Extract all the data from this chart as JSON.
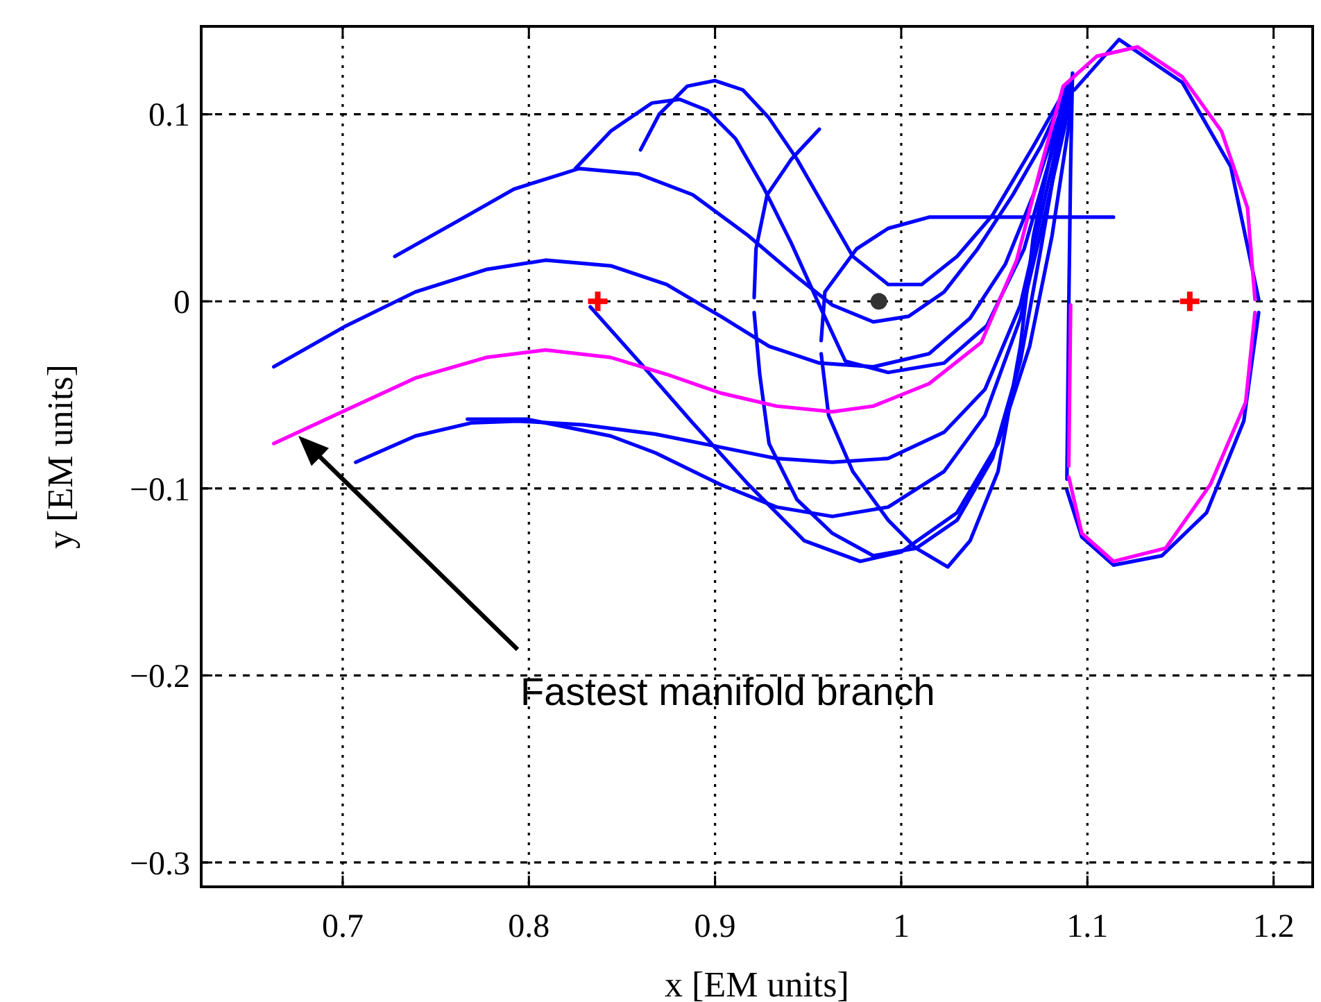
{
  "chart_data": {
    "type": "line",
    "xlabel": "x [EM units]",
    "ylabel": "y [EM units]",
    "xlim": [
      0.624,
      1.221
    ],
    "ylim": [
      -0.313,
      0.147
    ],
    "xticks": [
      0.7,
      0.8,
      0.9,
      1,
      1.1,
      1.2
    ],
    "yticks": [
      {
        "value": -0.3,
        "label": "−0.3"
      },
      {
        "value": -0.2,
        "label": "−0.2"
      },
      {
        "value": -0.1,
        "label": "−0.1"
      },
      0,
      0.1
    ],
    "grid": true,
    "marker": "none",
    "line_style": "solid",
    "annotations": [
      "Fastest manifold branch"
    ],
    "series": [
      {
        "color": "#0000ff",
        "x": [
          1.093,
          1.117,
          1.151,
          1.177,
          1.192
        ],
        "values": [
          0.113,
          0.14,
          0.117,
          0.072,
          0.001
        ]
      },
      {
        "color": "#0000ff",
        "x": [
          1.192,
          1.184,
          1.164,
          1.14,
          1.114,
          1.097,
          1.089
        ],
        "values": [
          -0.006,
          -0.064,
          -0.113,
          -0.136,
          -0.141,
          -0.126,
          -0.101
        ]
      },
      {
        "color": "#0000ff",
        "x": [
          1.089,
          1.09,
          1.091,
          1.092
        ],
        "values": [
          -0.095,
          -0.002,
          0.072,
          0.122
        ]
      },
      {
        "color": "#0000ff",
        "x": [
          0.728,
          0.762,
          0.792,
          0.827,
          0.859,
          0.888,
          0.918,
          0.944,
          0.963,
          0.985,
          1.004,
          1.023,
          1.041,
          1.06,
          1.075,
          1.092
        ],
        "values": [
          0.024,
          0.043,
          0.06,
          0.071,
          0.068,
          0.057,
          0.035,
          0.013,
          -0.002,
          -0.011,
          -0.008,
          0.005,
          0.028,
          0.057,
          0.083,
          0.12
        ]
      },
      {
        "color": "#0000ff",
        "x": [
          0.663,
          0.702,
          0.739,
          0.777,
          0.809,
          0.844,
          0.874,
          0.903,
          0.929,
          0.956,
          0.985,
          1.015,
          1.037,
          1.056,
          1.071,
          1.082,
          1.092
        ],
        "values": [
          -0.035,
          -0.013,
          0.005,
          0.017,
          0.022,
          0.019,
          0.009,
          -0.008,
          -0.024,
          -0.033,
          -0.035,
          -0.028,
          -0.009,
          0.02,
          0.057,
          0.091,
          0.12
        ]
      },
      {
        "color": "#0000ff",
        "x": [
          0.707,
          0.739,
          0.769,
          0.794,
          0.829,
          0.868,
          0.903,
          0.933,
          0.963,
          0.993,
          1.023,
          1.045,
          1.064,
          1.076,
          1.086,
          1.092
        ],
        "values": [
          -0.086,
          -0.072,
          -0.065,
          -0.064,
          -0.066,
          -0.071,
          -0.078,
          -0.084,
          -0.086,
          -0.084,
          -0.07,
          -0.047,
          -0.002,
          0.05,
          0.094,
          0.12
        ]
      },
      {
        "color": "#0000ff",
        "x": [
          0.767,
          0.799,
          0.819,
          0.844,
          0.868,
          0.903,
          0.933,
          0.963,
          0.993,
          1.023,
          1.045,
          1.064,
          1.078,
          1.088,
          1.092
        ],
        "values": [
          -0.063,
          -0.063,
          -0.067,
          -0.072,
          -0.081,
          -0.098,
          -0.11,
          -0.115,
          -0.11,
          -0.091,
          -0.061,
          -0.009,
          0.05,
          0.094,
          0.12
        ]
      },
      {
        "color": "#0000ff",
        "x": [
          0.833,
          0.859,
          0.888,
          0.918,
          0.948,
          0.978,
          1.0,
          1.03,
          1.052,
          1.069,
          1.081,
          1.09,
          1.092
        ],
        "values": [
          -0.003,
          -0.032,
          -0.065,
          -0.098,
          -0.128,
          -0.139,
          -0.134,
          -0.113,
          -0.076,
          -0.024,
          0.035,
          0.094,
          0.12
        ]
      },
      {
        "color": "#0000ff",
        "x": [
          0.825,
          0.844,
          0.866,
          0.881,
          0.896,
          0.911,
          0.926,
          0.941,
          0.956,
          0.97,
          0.993,
          1.023,
          1.046,
          1.066,
          1.081,
          1.092
        ],
        "values": [
          0.071,
          0.091,
          0.106,
          0.108,
          0.102,
          0.087,
          0.061,
          0.031,
          -0.002,
          -0.032,
          -0.038,
          -0.033,
          -0.013,
          0.028,
          0.08,
          0.12
        ]
      },
      {
        "color": "#0000ff",
        "x": [
          0.86,
          0.87,
          0.885,
          0.9,
          0.915,
          0.929,
          0.944,
          0.959,
          0.974,
          0.993,
          1.011,
          1.03,
          1.049,
          1.071,
          1.092
        ],
        "values": [
          0.081,
          0.1,
          0.115,
          0.118,
          0.113,
          0.098,
          0.076,
          0.05,
          0.024,
          0.009,
          0.009,
          0.024,
          0.046,
          0.083,
          0.12
        ]
      },
      {
        "color": "#0000ff",
        "x": [
          1.114,
          1.075,
          1.037,
          1.015,
          0.993,
          0.976,
          0.959,
          0.957
        ],
        "values": [
          0.045,
          0.045,
          0.045,
          0.045,
          0.039,
          0.028,
          0.005,
          -0.021
        ]
      },
      {
        "color": "#0000ff",
        "x": [
          0.957,
          0.961,
          0.974,
          0.993,
          1.008,
          1.025,
          1.037,
          1.052,
          1.064,
          1.071,
          1.082,
          1.092
        ],
        "values": [
          -0.028,
          -0.061,
          -0.091,
          -0.117,
          -0.132,
          -0.142,
          -0.128,
          -0.091,
          -0.024,
          0.035,
          0.087,
          0.12
        ]
      },
      {
        "color": "#0000ff",
        "x": [
          0.956,
          0.941,
          0.928,
          0.922,
          0.921
        ],
        "values": [
          0.092,
          0.076,
          0.057,
          0.028,
          0.002
        ]
      },
      {
        "color": "#0000ff",
        "x": [
          0.921,
          0.924,
          0.929,
          0.944,
          0.963,
          0.985,
          1.008,
          1.03,
          1.049,
          1.064,
          1.075,
          1.084,
          1.092
        ],
        "values": [
          -0.006,
          -0.039,
          -0.076,
          -0.106,
          -0.124,
          -0.136,
          -0.132,
          -0.117,
          -0.084,
          -0.032,
          0.028,
          0.08,
          0.12
        ]
      },
      {
        "color": "#ff00ff",
        "x": [
          0.663,
          0.702,
          0.739,
          0.777,
          0.809,
          0.844,
          0.874,
          0.903,
          0.933,
          0.963,
          0.985,
          1.015,
          1.043,
          1.062,
          1.075,
          1.087,
          1.105,
          1.127,
          1.151,
          1.172,
          1.186,
          1.19
        ],
        "values": [
          -0.076,
          -0.058,
          -0.041,
          -0.03,
          -0.026,
          -0.03,
          -0.039,
          -0.049,
          -0.056,
          -0.059,
          -0.056,
          -0.044,
          -0.022,
          0.022,
          0.072,
          0.115,
          0.131,
          0.136,
          0.12,
          0.091,
          0.05,
          0.001
        ]
      },
      {
        "color": "#ff00ff",
        "x": [
          1.19,
          1.185,
          1.166,
          1.142,
          1.114,
          1.097,
          1.09
        ],
        "values": [
          -0.006,
          -0.054,
          -0.098,
          -0.132,
          -0.139,
          -0.124,
          -0.094
        ]
      },
      {
        "color": "#ff00ff",
        "x": [
          1.09,
          1.091
        ],
        "values": [
          -0.088,
          -0.002
        ]
      },
      {
        "type": "scatter",
        "marker": "cross",
        "color": "#ff0000",
        "x": [
          0.837,
          1.155
        ],
        "values": [
          0,
          0
        ]
      },
      {
        "type": "scatter",
        "marker": "circle",
        "color": "#333333",
        "x": [
          0.988
        ],
        "values": [
          0
        ]
      }
    ]
  }
}
